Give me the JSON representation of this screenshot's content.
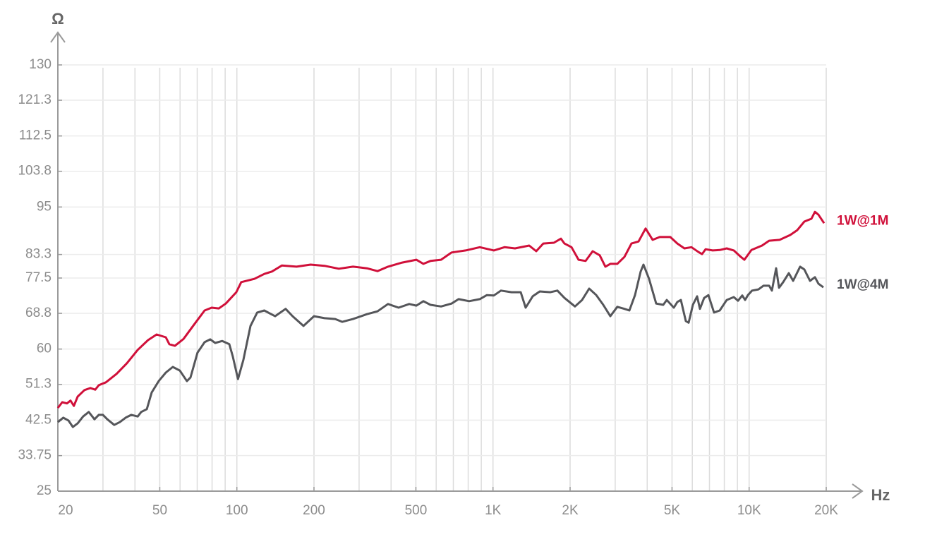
{
  "chart_data": {
    "type": "line",
    "y_label": "Ω",
    "x_label": "Hz",
    "xscale": "log",
    "grid": true,
    "xlim": [
      20,
      20000
    ],
    "xticks": [
      20,
      50,
      100,
      200,
      500,
      {
        "value": 1000,
        "label": "1K"
      },
      {
        "value": 2000,
        "label": "2K"
      },
      {
        "value": 5000,
        "label": "5K"
      },
      {
        "value": 10000,
        "label": "10K"
      },
      {
        "value": 20000,
        "label": "20K"
      }
    ],
    "ylim": [
      25,
      130
    ],
    "yticks": [
      25,
      33.75,
      42.5,
      51.3,
      60,
      68.8,
      77.5,
      83.3,
      95,
      103.8,
      112.5,
      121.3,
      130
    ],
    "series": [
      {
        "name": "1W@1M",
        "color": "#d0103a",
        "x": [
          20,
          20.8,
          21.7,
          22.4,
          23.1,
          23.9,
          25.4,
          26.8,
          28.0,
          28.9,
          30.8,
          33.9,
          37.2,
          41.0,
          45.0,
          48.6,
          52.8,
          54.5,
          57.3,
          61.9,
          68.0,
          74.8,
          79.7,
          85.0,
          90.5,
          99.5,
          104,
          117,
          128,
          137,
          150,
          171,
          194,
          220,
          250,
          284,
          322,
          354,
          389,
          442,
          502,
          535,
          570,
          627,
          689,
          782,
          888,
          1008,
          1109,
          1219,
          1384,
          1475,
          1572,
          1729,
          1842,
          1901,
          2026,
          2158,
          2300,
          2450,
          2610,
          2746,
          2871,
          3058,
          3259,
          3473,
          3700,
          3942,
          4201,
          4476,
          4924,
          5246,
          5590,
          5956,
          6346,
          6551,
          6762,
          7205,
          7677,
          8179,
          8715,
          9285,
          9584,
          10210,
          11230,
          11970,
          13160,
          14470,
          15420,
          16430,
          17510,
          18070,
          18650,
          19620
        ],
        "values": [
          45.5,
          46.9,
          46.6,
          47.3,
          46.0,
          48.3,
          49.9,
          50.4,
          50.0,
          51.1,
          51.8,
          53.9,
          56.5,
          59.8,
          62.2,
          63.6,
          62.9,
          61.2,
          60.8,
          62.5,
          66.0,
          69.5,
          70.2,
          70.0,
          71.2,
          74.0,
          76.5,
          77.3,
          78.5,
          79.1,
          80.6,
          80.3,
          80.8,
          80.5,
          79.8,
          80.3,
          79.9,
          79.2,
          80.3,
          81.3,
          82.0,
          81.0,
          81.7,
          82.0,
          83.8,
          84.3,
          85.1,
          84.3,
          85.1,
          84.8,
          85.5,
          84.1,
          86.0,
          86.2,
          87.2,
          86.0,
          85.1,
          82.0,
          81.7,
          84.1,
          83.1,
          80.3,
          81.0,
          81.0,
          82.7,
          86.0,
          86.5,
          89.7,
          86.9,
          87.6,
          87.6,
          86.0,
          84.8,
          85.1,
          83.9,
          83.4,
          84.6,
          84.3,
          84.4,
          84.8,
          84.3,
          82.7,
          82.0,
          84.4,
          85.5,
          86.7,
          86.9,
          88.1,
          89.3,
          91.4,
          92.1,
          93.8,
          93.1,
          91.0
        ]
      },
      {
        "name": "1W@4M",
        "color": "#55565a",
        "x": [
          20,
          21.0,
          22.0,
          22.9,
          23.9,
          25.1,
          26.4,
          27.8,
          28.9,
          30.0,
          31.2,
          33.2,
          34.9,
          36.8,
          38.7,
          41.0,
          42.3,
          44.5,
          46.5,
          49.5,
          52.8,
          56.2,
          59.9,
          63.8,
          65.9,
          70.2,
          74.8,
          78.7,
          82.3,
          87.7,
          93.4,
          96.4,
          101,
          106,
          113,
          120,
          128,
          141,
          155,
          165,
          182,
          200,
          220,
          242,
          258,
          284,
          322,
          354,
          389,
          428,
          471,
          502,
          535,
          570,
          627,
          689,
          734,
          807,
          888,
          946,
          1008,
          1074,
          1181,
          1283,
          1341,
          1429,
          1523,
          1675,
          1784,
          1901,
          2090,
          2228,
          2374,
          2530,
          2695,
          2871,
          3058,
          3259,
          3408,
          3584,
          3771,
          3868,
          4068,
          4336,
          4620,
          4770,
          5082,
          5246,
          5415,
          5660,
          5806,
          6030,
          6264,
          6424,
          6676,
          6934,
          7295,
          7677,
          8179,
          8715,
          9050,
          9400,
          9642,
          9888,
          10270,
          10880,
          11370,
          11970,
          12270,
          12750,
          13080,
          13580,
          14290,
          14850,
          15820,
          16430,
          17290,
          18070,
          18650,
          19500
        ],
        "values": [
          42.0,
          43.1,
          42.4,
          40.8,
          41.7,
          43.4,
          44.5,
          42.7,
          43.8,
          43.8,
          42.7,
          41.3,
          42.0,
          43.1,
          43.8,
          43.4,
          44.5,
          45.2,
          49.3,
          52.1,
          54.2,
          55.6,
          54.7,
          52.1,
          53.0,
          59.1,
          61.7,
          62.4,
          61.5,
          62.0,
          61.2,
          58.2,
          52.6,
          57.3,
          65.7,
          69.0,
          69.5,
          68.1,
          69.9,
          68.1,
          65.7,
          68.1,
          67.6,
          67.4,
          66.7,
          67.4,
          68.6,
          69.3,
          71.1,
          70.2,
          71.1,
          70.7,
          71.8,
          70.9,
          70.5,
          71.2,
          72.3,
          71.8,
          72.3,
          73.3,
          73.2,
          74.4,
          74.0,
          74.0,
          70.2,
          73.0,
          74.2,
          74.0,
          74.4,
          72.6,
          70.5,
          72.1,
          74.9,
          73.3,
          70.9,
          68.1,
          70.4,
          69.9,
          69.5,
          73.3,
          79.1,
          80.8,
          77.3,
          71.2,
          70.9,
          72.1,
          70.2,
          71.6,
          72.1,
          66.9,
          66.5,
          70.9,
          73.0,
          69.9,
          72.6,
          73.3,
          69.0,
          69.5,
          72.1,
          72.8,
          71.9,
          73.2,
          72.1,
          73.3,
          74.4,
          74.7,
          75.6,
          75.6,
          74.4,
          79.9,
          75.1,
          76.5,
          78.7,
          76.8,
          80.3,
          79.6,
          76.8,
          77.7,
          76.1,
          75.2
        ]
      }
    ]
  }
}
